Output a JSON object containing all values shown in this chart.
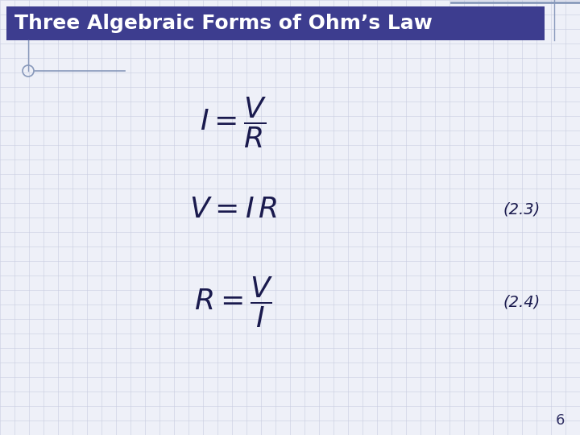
{
  "title": "Three Algebraic Forms of Ohm’s Law",
  "title_bg_color": "#3d3d8f",
  "title_text_color": "#ffffff",
  "bg_color": "#eef0f8",
  "grid_color": "#c8cce0",
  "formula_color": "#1a1a4e",
  "eq_num_color": "#1a1a4e",
  "page_num": "6",
  "page_num_color": "#333366",
  "left_decoration_color": "#8899bb",
  "title_font_size": 18,
  "formula_font_size": 22,
  "eq_num_font_size": 14,
  "page_num_font_size": 13,
  "eq_num2": "(2.3)",
  "eq_num3": "(2.4)"
}
